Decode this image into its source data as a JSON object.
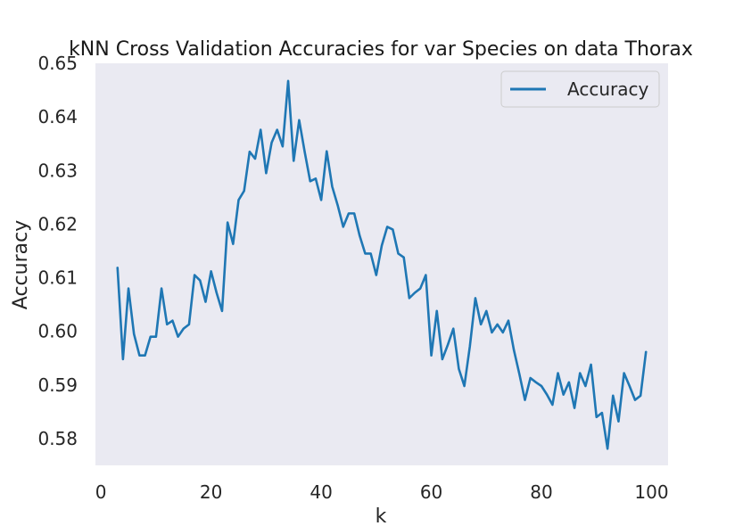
{
  "chart_data": {
    "type": "line",
    "title": "kNN Cross Validation Accuracies for var Species on data Thorax",
    "xlabel": "k",
    "ylabel": "Accuracy",
    "xlim": [
      -1,
      103
    ],
    "ylim": [
      0.575,
      0.65
    ],
    "xticks": [
      0,
      20,
      40,
      60,
      80,
      100
    ],
    "yticks": [
      0.58,
      0.59,
      0.6,
      0.61,
      0.62,
      0.63,
      0.64,
      0.65
    ],
    "ytick_labels": [
      "0.58",
      "0.59",
      "0.60",
      "0.61",
      "0.62",
      "0.63",
      "0.64",
      "0.65"
    ],
    "grid": false,
    "legend": "top-right",
    "plot_background": "#eaeaf2",
    "series": [
      {
        "name": "Accuracy",
        "color": "#1f77b4",
        "x": [
          3,
          4,
          5,
          6,
          7,
          8,
          9,
          10,
          11,
          12,
          13,
          14,
          15,
          16,
          17,
          18,
          19,
          20,
          21,
          22,
          23,
          24,
          25,
          26,
          27,
          28,
          29,
          30,
          31,
          32,
          33,
          34,
          35,
          36,
          37,
          38,
          39,
          40,
          41,
          42,
          43,
          44,
          45,
          46,
          47,
          48,
          49,
          50,
          51,
          52,
          53,
          54,
          55,
          56,
          57,
          58,
          59,
          60,
          61,
          62,
          63,
          64,
          65,
          66,
          67,
          68,
          69,
          70,
          71,
          72,
          73,
          74,
          75,
          76,
          77,
          78,
          79,
          80,
          81,
          82,
          83,
          84,
          85,
          86,
          87,
          88,
          89,
          90,
          91,
          92,
          93,
          94,
          95,
          96,
          97,
          98,
          99
        ],
        "values": [
          0.612,
          0.5948,
          0.608,
          0.5995,
          0.5955,
          0.5955,
          0.599,
          0.599,
          0.608,
          0.6013,
          0.602,
          0.599,
          0.6005,
          0.6013,
          0.6105,
          0.6095,
          0.6055,
          0.6112,
          0.6072,
          0.6038,
          0.6203,
          0.6163,
          0.6245,
          0.6262,
          0.6335,
          0.6322,
          0.6376,
          0.6295,
          0.6352,
          0.6376,
          0.6345,
          0.6467,
          0.6318,
          0.6394,
          0.6335,
          0.628,
          0.6285,
          0.6245,
          0.6336,
          0.627,
          0.6235,
          0.6195,
          0.622,
          0.622,
          0.6178,
          0.6145,
          0.6145,
          0.6105,
          0.616,
          0.6195,
          0.619,
          0.6145,
          0.6138,
          0.6062,
          0.6072,
          0.608,
          0.6105,
          0.5955,
          0.6038,
          0.5948,
          0.5975,
          0.6005,
          0.593,
          0.5898,
          0.5972,
          0.6062,
          0.6013,
          0.6038,
          0.5998,
          0.6013,
          0.5998,
          0.602,
          0.5965,
          0.592,
          0.5872,
          0.5913,
          0.5905,
          0.5898,
          0.5882,
          0.5863,
          0.5922,
          0.5882,
          0.5905,
          0.5857,
          0.5922,
          0.5898,
          0.5938,
          0.584,
          0.5848,
          0.5781,
          0.588,
          0.5832,
          0.5922,
          0.5898,
          0.5872,
          0.588,
          0.5963
        ]
      }
    ]
  }
}
